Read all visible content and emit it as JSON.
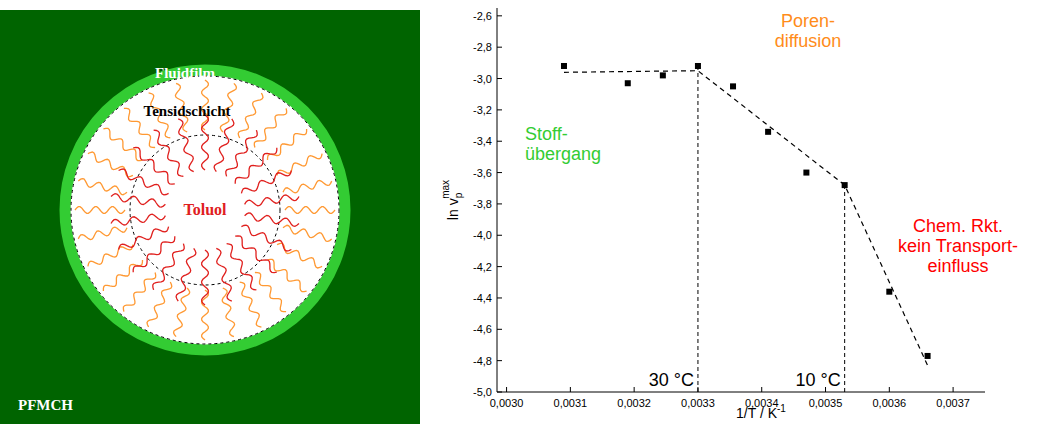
{
  "diagram": {
    "fluid_film": "Fluidfilm",
    "surfactant_layer": "Tensidschicht",
    "core": "Toluol",
    "medium": "PFMCH"
  },
  "chart_data": {
    "type": "scatter",
    "xlabel": {
      "base": "1/T / K",
      "sup": "-1"
    },
    "ylabel": {
      "base": "ln v",
      "sub": "p",
      "sup": "max"
    },
    "xlim": [
      0.002985,
      0.00375
    ],
    "ylim": [
      -5.0,
      -2.55
    ],
    "xticks": [
      {
        "value": 0.003,
        "label": "0,0030"
      },
      {
        "value": 0.0031,
        "label": "0,0031"
      },
      {
        "value": 0.0032,
        "label": "0,0032"
      },
      {
        "value": 0.0033,
        "label": "0,0033"
      },
      {
        "value": 0.0034,
        "label": "0,0034"
      },
      {
        "value": 0.0035,
        "label": "0,0035"
      },
      {
        "value": 0.0036,
        "label": "0,0036"
      },
      {
        "value": 0.0037,
        "label": "0,0037"
      }
    ],
    "yticks": [
      {
        "value": -2.6,
        "label": "-2,6"
      },
      {
        "value": -2.8,
        "label": "-2,8"
      },
      {
        "value": -3.0,
        "label": "-3,0"
      },
      {
        "value": -3.2,
        "label": "-3,2"
      },
      {
        "value": -3.4,
        "label": "-3,4"
      },
      {
        "value": -3.6,
        "label": "-3,6"
      },
      {
        "value": -3.8,
        "label": "-3,8"
      },
      {
        "value": -4.0,
        "label": "-4,0"
      },
      {
        "value": -4.2,
        "label": "-4,2"
      },
      {
        "value": -4.4,
        "label": "-4,4"
      },
      {
        "value": -4.6,
        "label": "-4,6"
      },
      {
        "value": -4.8,
        "label": "-4,8"
      },
      {
        "value": -5.0,
        "label": "-5,0"
      }
    ],
    "grid": false,
    "series": [
      {
        "type": "scatter",
        "marker": "square",
        "color": "#000000",
        "x": [
          0.00309,
          0.00319,
          0.003245,
          0.0033,
          0.003355,
          0.00341,
          0.00347,
          0.00353,
          0.0036,
          0.00366
        ],
        "values": [
          -2.92,
          -3.03,
          -2.98,
          -2.92,
          -3.05,
          -3.34,
          -3.6,
          -3.68,
          -4.36,
          -4.77
        ]
      },
      {
        "type": "line",
        "line_style": "dashed",
        "color": "#000000",
        "x": [
          0.00309,
          0.0033,
          0.00353,
          0.00366
        ],
        "values": [
          -2.96,
          -2.95,
          -3.68,
          -4.83
        ]
      }
    ],
    "vlines": [
      {
        "x": 0.0033,
        "y": -2.92,
        "label": "30 °C"
      },
      {
        "x": 0.00353,
        "y": -3.68,
        "label": "10 °C"
      }
    ],
    "annotations": [
      {
        "lines": [
          "Stoff-",
          "übergang"
        ],
        "color": "#33cc33"
      },
      {
        "lines": [
          "Poren-",
          "diffusion"
        ],
        "color": "#ff8c1a"
      },
      {
        "lines": [
          "Chem. Rkt.",
          "kein Transport-",
          "einfluss"
        ],
        "color": "#ff0000"
      }
    ]
  }
}
